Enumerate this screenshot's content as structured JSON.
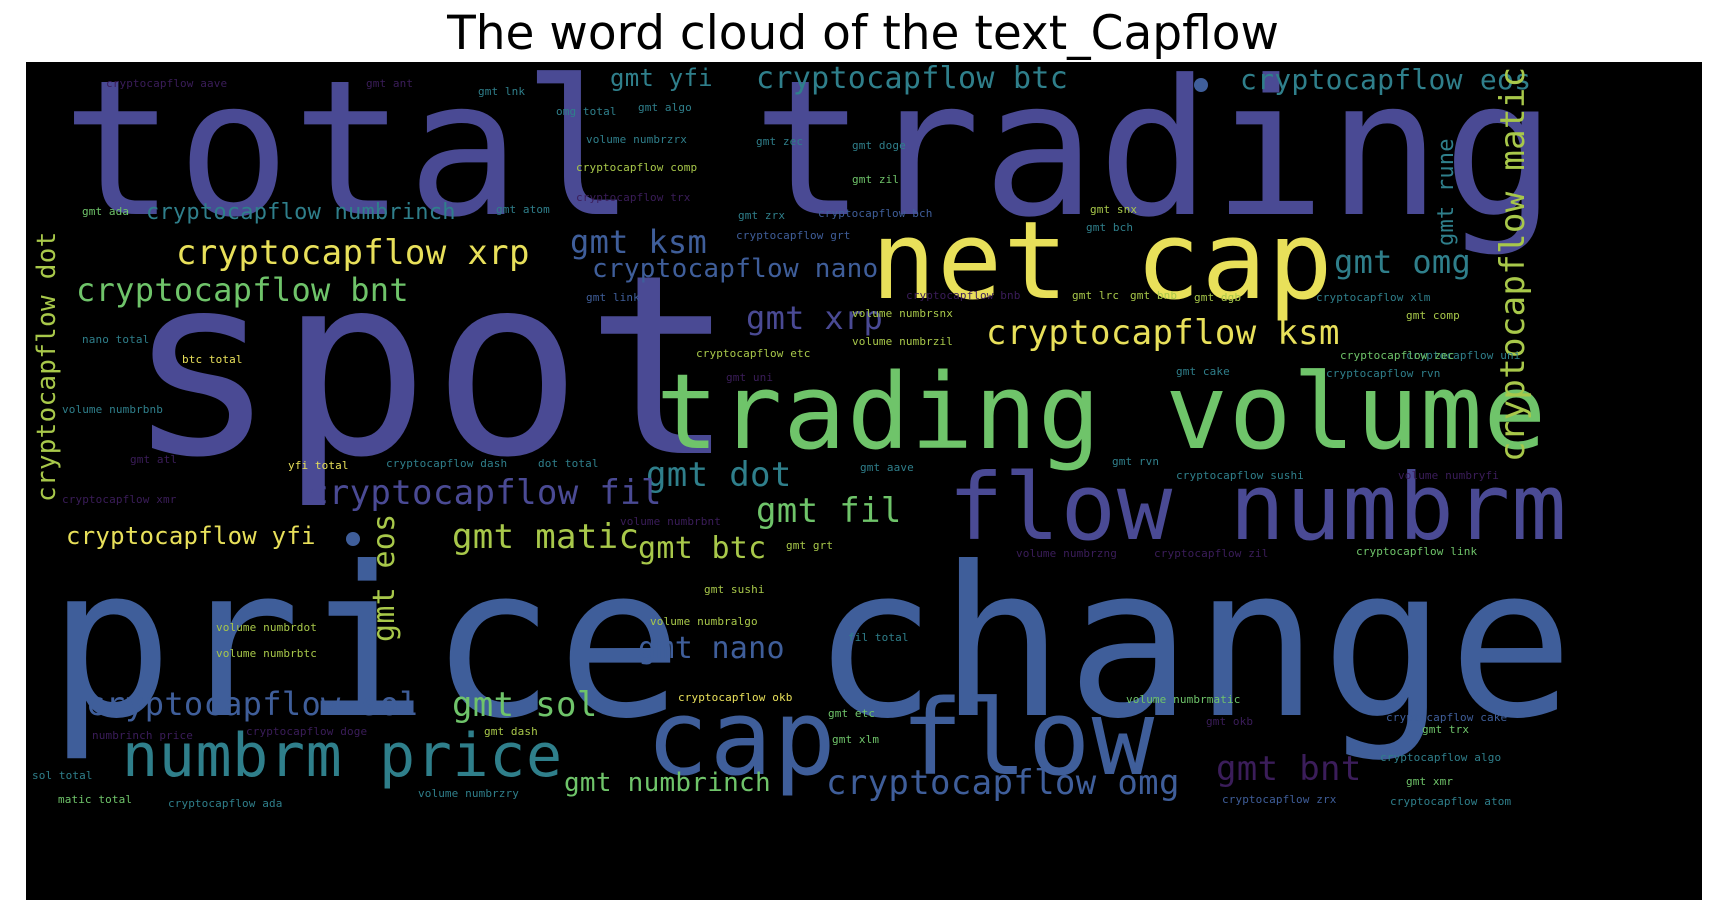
{
  "title": "The word cloud of the text_Capflow",
  "colors": {
    "background": "#000000",
    "purple": "#4a4a94",
    "blue": "#3f5e9a",
    "teal": "#2f7f8b",
    "green": "#6fc46a",
    "yellowgreen": "#a8c84a",
    "yellow": "#e8e05a",
    "dark": "#3b1d5a"
  },
  "words": {
    "total_trading": "total trading",
    "spot": "spot",
    "price_change": "price change",
    "trading_volume": "trading volume",
    "net_cap": "net cap",
    "flow_numbrm": "flow numbrm",
    "cap_flow": "cap flow",
    "numbrm_price": "numbrm price",
    "cc_btc": "cryptocapflow btc",
    "cc_eos": "cryptocapflow eos",
    "cc_numbrinch": "cryptocapflow numbrinch",
    "cc_xrp": "cryptocapflow xrp",
    "cc_bnt": "cryptocapflow bnt",
    "cc_nano": "cryptocapflow nano",
    "cc_ksm": "cryptocapflow ksm",
    "cc_fil": "cryptocapflow fil",
    "cc_yfi": "cryptocapflow yfi",
    "cc_sol": "cryptocapflow sol",
    "cc_omg": "cryptocapflow omg",
    "cc_dot": "cryptocapflow dot",
    "cc_matic": "cryptocapflow matic",
    "gmt_yfi": "gmt yfi",
    "gmt_ksm": "gmt ksm",
    "gmt_omg": "gmt omg",
    "gmt_xrp": "gmt xrp",
    "gmt_dot": "gmt dot",
    "gmt_fil": "gmt fil",
    "gmt_matic": "gmt matic",
    "gmt_btc": "gmt btc",
    "gmt_eos": "gmt eos",
    "gmt_nano": "gmt nano",
    "gmt_sol": "gmt sol",
    "gmt_numbrinch": "gmt numbrinch",
    "gmt_bnt": "gmt bnt",
    "gmt_rune": "gmt rune"
  },
  "small_words": [
    "cryptocapflow aave",
    "gmt ant",
    "gmt lnk",
    "omg total",
    "gmt algo",
    "volume numbrzrx",
    "gmt zec",
    "gmt doge",
    "cryptocapflow comp",
    "gmt zil",
    "cryptocapflow trx",
    "gmt ada",
    "gmt atom",
    "gmt zrx",
    "cryptocapflow bch",
    "cryptocapflow grt",
    "gmt snx",
    "gmt bch",
    "gmt link",
    "gmt lrc",
    "cryptocapflow bnb",
    "gmt bnb",
    "gmt dgb",
    "gmt comp",
    "cryptocapflow xlm",
    "cryptocapflow uni",
    "volume numbrsnx",
    "volume numbrzil",
    "btc total",
    "nano total",
    "cryptocapflow zec",
    "gmt uni",
    "gmt cake",
    "cryptocapflow rvn",
    "cryptocapflow etc",
    "volume numbrbnb",
    "gmt atl",
    "gmt rvn",
    "yfi total",
    "cryptocapflow dash",
    "dot total",
    "gmt aave",
    "cryptocapflow sushi",
    "volume numbryfi",
    "cryptocapflow xmr",
    "volume numbrbnt",
    "gmt grt",
    "volume numbrzng",
    "cryptocapflow zil",
    "cryptocapflow link",
    "gmt sushi",
    "volume numbralgo",
    "volume numbrdot",
    "volume numbrbtc",
    "fil total",
    "numbrinch price",
    "cryptocapflow doge",
    "gmt dash",
    "cryptocapflow okb",
    "volume numbrmatic",
    "gmt etc",
    "gmt okb",
    "cryptocapflow algo",
    "gmt xlm",
    "sol total",
    "volume numbrzry",
    "matic total",
    "cryptocapflow ada",
    "cryptocapflow zrx",
    "cryptocapflow atom",
    "gmt trx",
    "cryptocapflow cake",
    "gmt xmr"
  ]
}
